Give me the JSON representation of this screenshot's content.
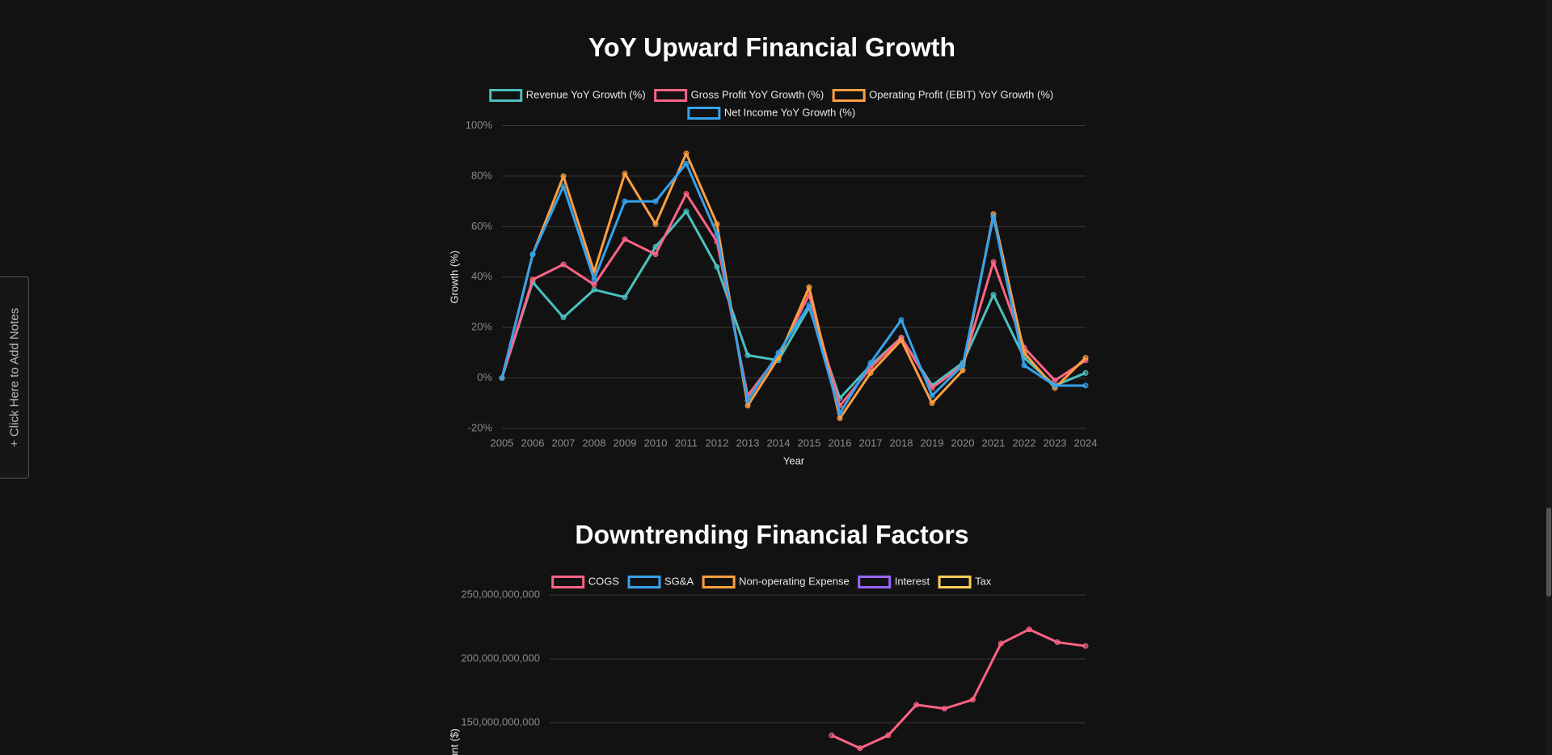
{
  "notes_tab": "+ Click Here to Add Notes",
  "chart_data": [
    {
      "type": "line",
      "title": "YoY Upward Financial Growth",
      "x_label": "Year",
      "y_label": "Growth (%)",
      "categories": [
        "2005",
        "2006",
        "2007",
        "2008",
        "2009",
        "2010",
        "2011",
        "2012",
        "2013",
        "2014",
        "2015",
        "2016",
        "2017",
        "2018",
        "2019",
        "2020",
        "2021",
        "2022",
        "2023",
        "2024"
      ],
      "series": [
        {
          "name": "Revenue YoY Growth (%)",
          "color": "#4bc0c0",
          "values": [
            0,
            38,
            24,
            35,
            32,
            52,
            66,
            44,
            9,
            7,
            28,
            -8,
            5,
            16,
            -3,
            6,
            33,
            8,
            -3,
            2
          ]
        },
        {
          "name": "Gross Profit YoY Growth (%)",
          "color": "#ff6384",
          "values": [
            0,
            39,
            45,
            37,
            55,
            49,
            73,
            54,
            -7,
            9,
            33,
            -11,
            4,
            16,
            -4,
            5,
            46,
            12,
            -1,
            7
          ]
        },
        {
          "name": "Operating Profit (EBIT) YoY Growth (%)",
          "color": "#ff9f40",
          "values": [
            0,
            49,
            80,
            42,
            81,
            61,
            89,
            61,
            -11,
            8,
            36,
            -16,
            2,
            15,
            -10,
            3,
            65,
            10,
            -4,
            8
          ]
        },
        {
          "name": "Net Income YoY Growth (%)",
          "color": "#36a2eb",
          "values": [
            0,
            49,
            76,
            39,
            70,
            70,
            85,
            57,
            -9,
            10,
            29,
            -14,
            6,
            23,
            -7,
            5,
            64,
            5,
            -3,
            -3
          ]
        }
      ],
      "ylim": [
        -20,
        100
      ],
      "yticks": [
        {
          "value": -20,
          "label": "-20%"
        },
        {
          "value": 0,
          "label": "0%"
        },
        {
          "value": 20,
          "label": "20%"
        },
        {
          "value": 40,
          "label": "40%"
        },
        {
          "value": 60,
          "label": "60%"
        },
        {
          "value": 80,
          "label": "80%"
        },
        {
          "value": 100,
          "label": "100%"
        }
      ],
      "grid": true,
      "legend": "top"
    },
    {
      "type": "line",
      "title": "Downtrending Financial Factors",
      "y_label": "Amount ($)",
      "categories": [
        null,
        null,
        null,
        null,
        null,
        null,
        null,
        null,
        null,
        null,
        null,
        null,
        null,
        null,
        null,
        null,
        null,
        null,
        null,
        null
      ],
      "series": [
        {
          "name": "COGS",
          "color": "#ff6384",
          "values": [
            null,
            null,
            null,
            null,
            null,
            null,
            null,
            null,
            null,
            null,
            140000000000,
            130000000000,
            140000000000,
            164000000000,
            161000000000,
            168000000000,
            212000000000,
            223000000000,
            213000000000,
            210000000000
          ]
        },
        {
          "name": "SG&A",
          "color": "#36a2eb",
          "values": [
            null,
            null,
            null,
            null,
            null,
            null,
            null,
            null,
            null,
            null,
            null,
            null,
            null,
            null,
            null,
            null,
            null,
            null,
            null,
            null
          ]
        },
        {
          "name": "Non-operating Expense",
          "color": "#ff9f40",
          "values": [
            null,
            null,
            null,
            null,
            null,
            null,
            null,
            null,
            null,
            null,
            null,
            null,
            null,
            null,
            null,
            null,
            null,
            null,
            null,
            null
          ]
        },
        {
          "name": "Interest",
          "color": "#9966ff",
          "values": [
            null,
            null,
            null,
            null,
            null,
            null,
            null,
            null,
            null,
            null,
            null,
            null,
            null,
            null,
            null,
            null,
            null,
            null,
            null,
            null
          ]
        },
        {
          "name": "Tax",
          "color": "#ffcd56",
          "values": [
            null,
            null,
            null,
            null,
            null,
            null,
            null,
            null,
            null,
            null,
            null,
            null,
            null,
            null,
            null,
            null,
            null,
            null,
            null,
            null
          ]
        }
      ],
      "ylim": [
        0,
        250000000000
      ],
      "yticks": [
        {
          "value": 150000000000,
          "label": "150,000,000,000"
        },
        {
          "value": 200000000000,
          "label": "200,000,000,000"
        },
        {
          "value": 250000000000,
          "label": "250,000,000,000"
        }
      ],
      "grid": true,
      "legend": "top"
    }
  ]
}
